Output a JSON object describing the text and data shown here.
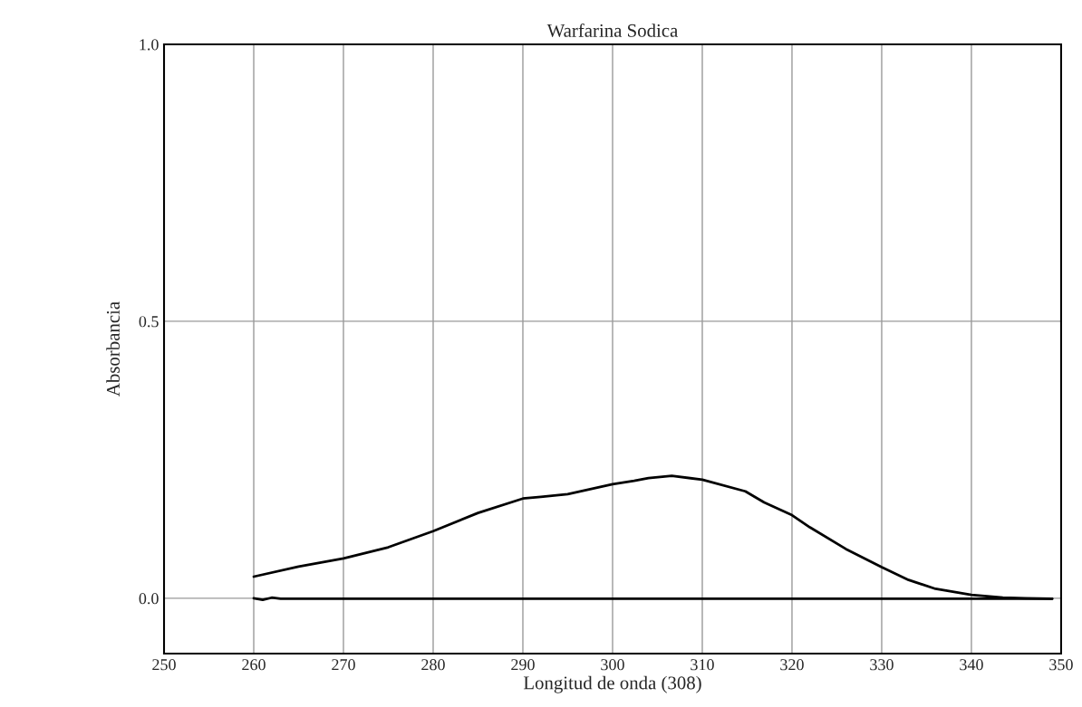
{
  "chart_data": {
    "type": "line",
    "title": "Warfarina Sodica",
    "xlabel": "Longitud de onda (308)",
    "ylabel": "Absorbancia",
    "xlim": [
      250,
      350
    ],
    "xticks": [
      250,
      260,
      270,
      280,
      290,
      300,
      310,
      320,
      330,
      340,
      350
    ],
    "ylim": [
      -0.1,
      1.0
    ],
    "yticks": [
      {
        "value": 0,
        "label": "0.0"
      },
      0.5,
      {
        "value": 1,
        "label": "1.0"
      }
    ],
    "grid": true,
    "legend": false,
    "marker": "none",
    "line_style": "solid",
    "series": [
      {
        "color": "#000000",
        "x": [
          260,
          265,
          270,
          275,
          280,
          285,
          290,
          292,
          295,
          300,
          302.4,
          304,
          306.6,
          310,
          314.8,
          316.9,
          320,
          322,
          326,
          330,
          333,
          336,
          340,
          343.5,
          346,
          349
        ],
        "values": [
          0.039,
          0.057,
          0.072,
          0.092,
          0.121,
          0.154,
          0.18,
          0.183,
          0.188,
          0.206,
          0.212,
          0.217,
          0.221,
          0.214,
          0.193,
          0.173,
          0.15,
          0.128,
          0.089,
          0.056,
          0.033,
          0.017,
          0.006,
          0.001,
          0.0,
          -0.001
        ]
      },
      {
        "color": "#000000",
        "x": [
          260,
          261,
          262,
          263,
          270,
          280,
          290,
          300,
          310,
          320,
          330,
          340,
          349
        ],
        "values": [
          0.0,
          -0.003,
          0.001,
          -0.001,
          -0.001,
          -0.001,
          -0.001,
          -0.001,
          -0.001,
          -0.001,
          -0.001,
          -0.001,
          -0.001
        ]
      }
    ]
  }
}
